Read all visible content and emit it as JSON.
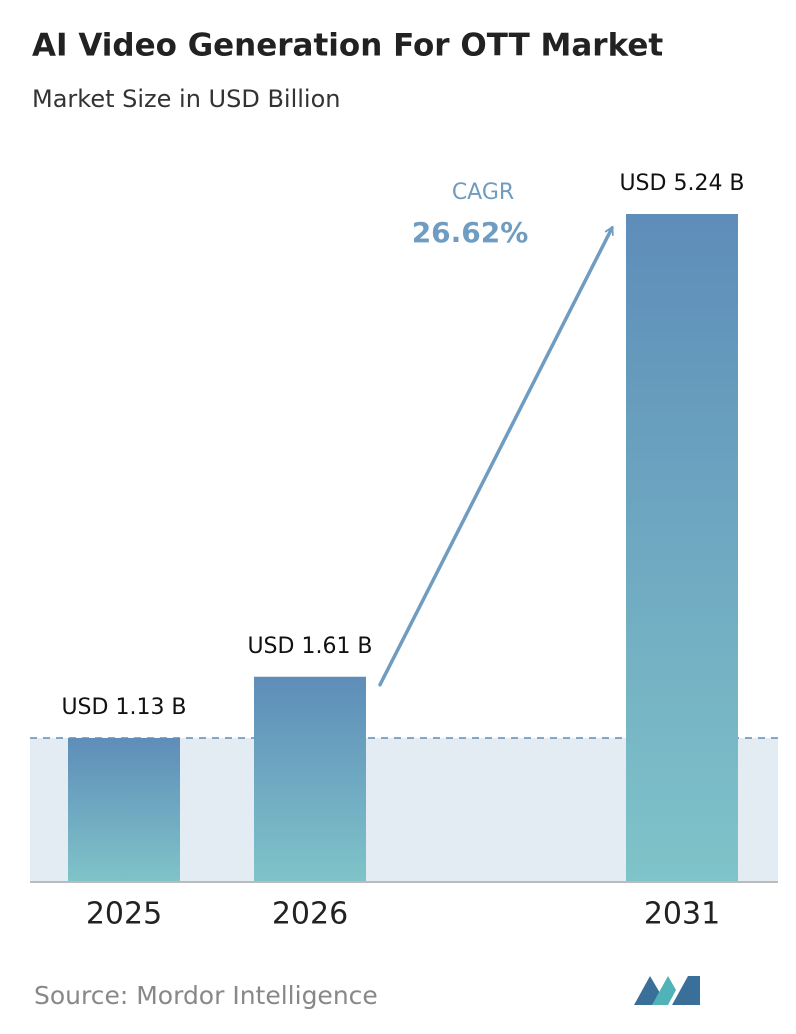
{
  "chart_data": {
    "type": "bar",
    "title": "AI Video Generation For OTT Market",
    "subtitle": "Market Size in USD Billion",
    "categories": [
      "2025",
      "2026",
      "2031"
    ],
    "values": [
      1.13,
      1.61,
      5.24
    ],
    "value_labels": [
      "USD 1.13 B",
      "USD 1.61 B",
      "USD 5.24 B"
    ],
    "gradient": [
      "#5e8db9",
      "#7fc4c9"
    ],
    "annotation": {
      "label": "CAGR",
      "value": "26.62%"
    },
    "source": "Source: Mordor Intelligence"
  }
}
